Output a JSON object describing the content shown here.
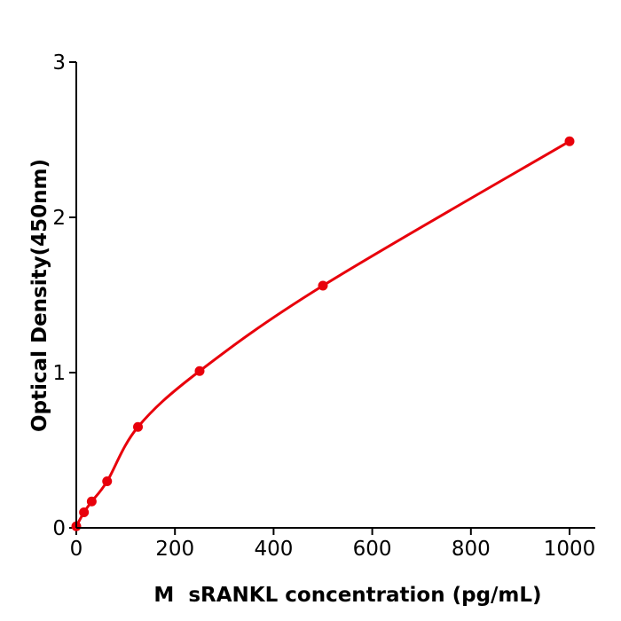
{
  "chart_data": {
    "type": "scatter",
    "xlabel": "M  sRANKL concentration (pg/mL)",
    "ylabel": "Optical Density(450nm)",
    "xlim": [
      0,
      1050
    ],
    "ylim": [
      0,
      3
    ],
    "xticks": [
      0,
      200,
      400,
      600,
      800,
      1000
    ],
    "yticks": [
      0,
      1,
      2,
      3
    ],
    "grid": false,
    "series": [
      {
        "x": [
          0,
          15.6,
          31.25,
          62.5,
          125,
          250,
          500,
          1000
        ],
        "y": [
          0.01,
          0.1,
          0.17,
          0.3,
          0.65,
          1.01,
          1.56,
          2.49
        ],
        "marker": "circle",
        "fit_curve": true,
        "color": "#e8000b"
      }
    ]
  }
}
